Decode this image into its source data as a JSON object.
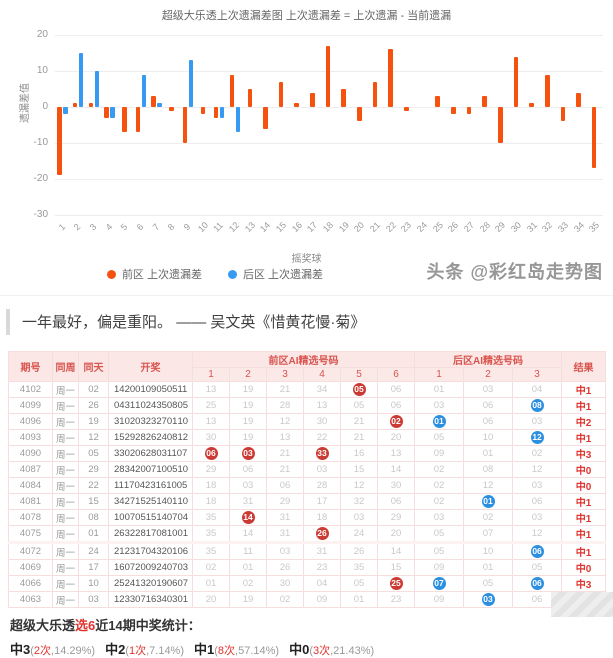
{
  "chart_data": {
    "type": "bar",
    "title": "超级大乐透上次遗漏差图 上次遗漏差 = 上次遗漏 - 当前遗漏",
    "xlabel": "摇奖球",
    "ylabel": "遗漏差值",
    "ylim": [
      -30,
      20
    ],
    "yticks": [
      20,
      10,
      0,
      -10,
      -20,
      -30
    ],
    "categories": [
      1,
      2,
      3,
      4,
      5,
      6,
      7,
      8,
      9,
      10,
      11,
      12,
      13,
      14,
      15,
      16,
      17,
      18,
      19,
      20,
      21,
      22,
      23,
      24,
      25,
      26,
      27,
      28,
      29,
      30,
      31,
      32,
      33,
      34,
      35
    ],
    "series": [
      {
        "name": "前区 上次遗漏差",
        "color": "#f4520e",
        "values": [
          -19,
          1,
          1,
          -3,
          -7,
          -7,
          3,
          -1,
          -10,
          -2,
          -3,
          9,
          5,
          -6,
          7,
          1,
          4,
          17,
          5,
          -4,
          7,
          16,
          -1,
          0,
          3,
          -2,
          -2,
          3,
          -10,
          14,
          1,
          9,
          -4,
          4,
          -17
        ]
      },
      {
        "name": "后区 上次遗漏差",
        "color": "#3699f2",
        "values": [
          -2,
          15,
          10,
          -3,
          0,
          9,
          1,
          0,
          13,
          0,
          -3,
          -7
        ]
      }
    ],
    "legend_position": "bottom",
    "grid": true
  },
  "watermark": "头条 @彩红岛走势图",
  "quote": {
    "text": "一年最好，偏是重阳。",
    "source": "—— 吴文英《惜黄花慢·菊》"
  },
  "table": {
    "header": {
      "period": "期号",
      "week": "同周",
      "day": "同天",
      "draw": "开奖",
      "front_group": "前区AI精选号码",
      "back_group": "后区AI精选号码",
      "result": "结果",
      "front_cols": [
        "1",
        "2",
        "3",
        "4",
        "5",
        "6"
      ],
      "back_cols": [
        "1",
        "2",
        "3"
      ]
    },
    "rows": [
      {
        "period": "4102",
        "week": "周一",
        "day": "02",
        "draw": [
          "14",
          "20",
          "01",
          "09",
          "05",
          "05",
          "11"
        ],
        "front": [
          "13",
          "19",
          "21",
          "34",
          "05",
          "06"
        ],
        "front_hits": [
          4
        ],
        "back": [
          "01",
          "03",
          "04"
        ],
        "back_hits": [],
        "result": "中1",
        "group_end": false
      },
      {
        "period": "4099",
        "week": "周一",
        "day": "26",
        "draw": [
          "04",
          "31",
          "10",
          "24",
          "35",
          "08",
          "05"
        ],
        "front": [
          "25",
          "19",
          "28",
          "13",
          "05",
          "06"
        ],
        "front_hits": [],
        "back": [
          "03",
          "06",
          "08"
        ],
        "back_hits": [
          2
        ],
        "result": "中1",
        "group_end": false
      },
      {
        "period": "4096",
        "week": "周一",
        "day": "19",
        "draw": [
          "31",
          "02",
          "03",
          "23",
          "27",
          "01",
          "10"
        ],
        "front": [
          "13",
          "19",
          "12",
          "30",
          "21",
          "02"
        ],
        "front_hits": [
          5
        ],
        "back": [
          "01",
          "06",
          "03"
        ],
        "back_hits": [
          0
        ],
        "result": "中2",
        "group_end": false
      },
      {
        "period": "4093",
        "week": "周一",
        "day": "12",
        "draw": [
          "15",
          "29",
          "28",
          "26",
          "24",
          "08",
          "12"
        ],
        "front": [
          "30",
          "19",
          "13",
          "22",
          "21",
          "20"
        ],
        "front_hits": [],
        "back": [
          "05",
          "10",
          "12"
        ],
        "back_hits": [
          2
        ],
        "result": "中1",
        "group_end": false
      },
      {
        "period": "4090",
        "week": "周一",
        "day": "05",
        "draw": [
          "33",
          "02",
          "06",
          "28",
          "03",
          "11",
          "07"
        ],
        "front": [
          "06",
          "03",
          "21",
          "33",
          "16",
          "13"
        ],
        "front_hits": [
          0,
          1,
          3
        ],
        "back": [
          "09",
          "01",
          "02"
        ],
        "back_hits": [],
        "result": "中3",
        "group_end": false
      },
      {
        "period": "4087",
        "week": "周一",
        "day": "29",
        "draw": [
          "28",
          "34",
          "20",
          "07",
          "10",
          "05",
          "10"
        ],
        "front": [
          "29",
          "06",
          "21",
          "03",
          "15",
          "14"
        ],
        "front_hits": [],
        "back": [
          "02",
          "08",
          "12"
        ],
        "back_hits": [],
        "result": "中0",
        "group_end": false
      },
      {
        "period": "4084",
        "week": "周一",
        "day": "22",
        "draw": [
          "11",
          "17",
          "04",
          "23",
          "16",
          "10",
          "05"
        ],
        "front": [
          "18",
          "03",
          "06",
          "28",
          "12",
          "30"
        ],
        "front_hits": [],
        "back": [
          "02",
          "12",
          "03"
        ],
        "back_hits": [],
        "result": "中0",
        "group_end": false
      },
      {
        "period": "4081",
        "week": "周一",
        "day": "15",
        "draw": [
          "34",
          "27",
          "15",
          "25",
          "14",
          "01",
          "10"
        ],
        "front": [
          "18",
          "31",
          "29",
          "17",
          "32",
          "06"
        ],
        "front_hits": [],
        "back": [
          "02",
          "01",
          "06"
        ],
        "back_hits": [
          1
        ],
        "result": "中1",
        "group_end": false
      },
      {
        "period": "4078",
        "week": "周一",
        "day": "08",
        "draw": [
          "10",
          "07",
          "05",
          "15",
          "14",
          "07",
          "04"
        ],
        "front": [
          "35",
          "14",
          "31",
          "18",
          "03",
          "29"
        ],
        "front_hits": [
          1
        ],
        "back": [
          "03",
          "02",
          "03"
        ],
        "back_hits": [],
        "result": "中1",
        "group_end": false
      },
      {
        "period": "4075",
        "week": "周一",
        "day": "01",
        "draw": [
          "26",
          "32",
          "28",
          "17",
          "08",
          "10",
          "01"
        ],
        "front": [
          "35",
          "14",
          "31",
          "26",
          "24",
          "20"
        ],
        "front_hits": [
          3
        ],
        "back": [
          "05",
          "07",
          "12"
        ],
        "back_hits": [],
        "result": "中1",
        "group_end": true
      },
      {
        "period": "4072",
        "week": "周一",
        "day": "24",
        "draw": [
          "21",
          "23",
          "17",
          "04",
          "32",
          "01",
          "06"
        ],
        "front": [
          "35",
          "11",
          "03",
          "31",
          "26",
          "14"
        ],
        "front_hits": [],
        "back": [
          "05",
          "10",
          "06"
        ],
        "back_hits": [
          2
        ],
        "result": "中1",
        "group_end": false
      },
      {
        "period": "4069",
        "week": "周一",
        "day": "17",
        "draw": [
          "16",
          "07",
          "20",
          "09",
          "24",
          "07",
          "03"
        ],
        "front": [
          "02",
          "01",
          "26",
          "23",
          "35",
          "15"
        ],
        "front_hits": [],
        "back": [
          "09",
          "01",
          "05"
        ],
        "back_hits": [],
        "result": "中0",
        "group_end": false
      },
      {
        "period": "4066",
        "week": "周一",
        "day": "10",
        "draw": [
          "25",
          "24",
          "13",
          "20",
          "19",
          "06",
          "07"
        ],
        "front": [
          "01",
          "02",
          "30",
          "04",
          "05",
          "25"
        ],
        "front_hits": [
          5
        ],
        "back": [
          "07",
          "05",
          "06"
        ],
        "back_hits": [
          0,
          2
        ],
        "result": "中3",
        "group_end": false
      },
      {
        "period": "4063",
        "week": "周一",
        "day": "03",
        "draw": [
          "12",
          "33",
          "07",
          "16",
          "34",
          "03",
          "01"
        ],
        "front": [
          "20",
          "19",
          "02",
          "09",
          "01",
          "23"
        ],
        "front_hits": [],
        "back": [
          "09",
          "03",
          "06"
        ],
        "back_hits": [
          1
        ],
        "result": "中1",
        "group_end": false
      }
    ]
  },
  "stats": {
    "title_prefix": "超级大乐透",
    "title_highlight": "选6",
    "title_suffix": "近14期中奖统计：",
    "items": [
      {
        "label": "中3",
        "count": "2次",
        "pct": "14.29%"
      },
      {
        "label": "中2",
        "count": "1次",
        "pct": "7.14%"
      },
      {
        "label": "中1",
        "count": "8次",
        "pct": "57.14%"
      },
      {
        "label": "中0",
        "count": "3次",
        "pct": "21.43%"
      }
    ]
  },
  "colors": {
    "front_bar": "#f4520e",
    "back_bar": "#3699f2",
    "hit_front": "#cb3a33",
    "hit_back": "#2d8fe0",
    "accent_red": "#e0342f"
  }
}
